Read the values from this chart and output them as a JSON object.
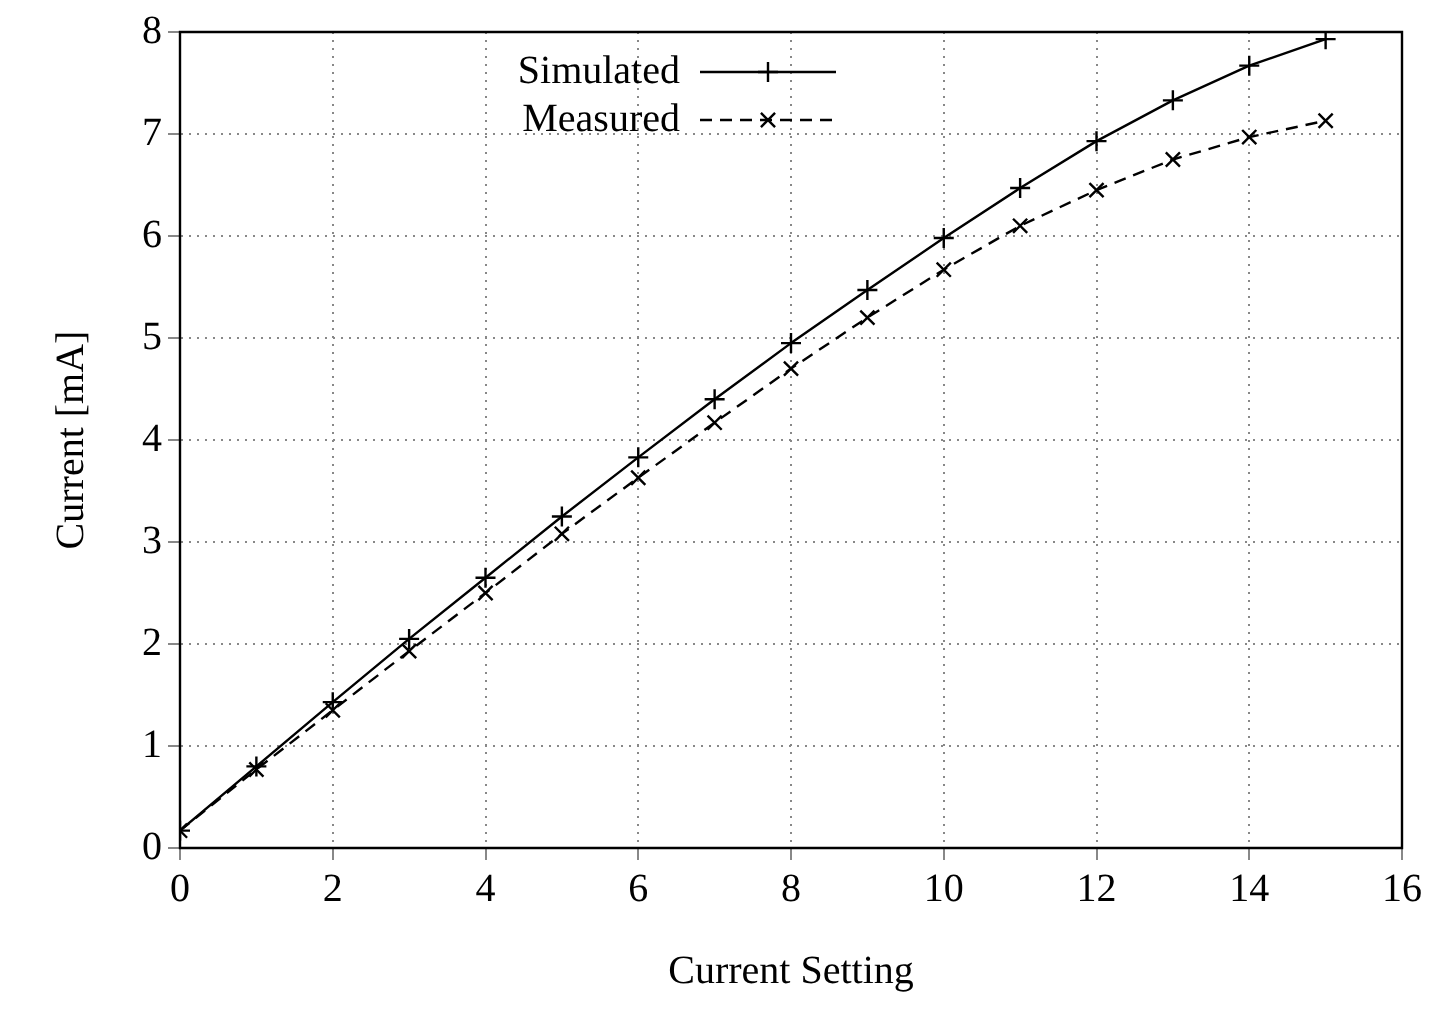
{
  "chart_data": {
    "type": "line",
    "xlabel": "Current Setting",
    "ylabel": "Current [mA]",
    "x": [
      0,
      1,
      2,
      3,
      4,
      5,
      6,
      7,
      8,
      9,
      10,
      11,
      12,
      13,
      14,
      15
    ],
    "series": [
      {
        "name": "Simulated",
        "color": "#000000",
        "marker": "plus",
        "line_style": "solid",
        "values": [
          0.17,
          0.8,
          1.43,
          2.05,
          2.65,
          3.25,
          3.83,
          4.4,
          4.95,
          5.47,
          5.98,
          6.47,
          6.93,
          7.33,
          7.67,
          7.93
        ]
      },
      {
        "name": "Measured",
        "color": "#000000",
        "marker": "cross",
        "line_style": "dashed",
        "values": [
          0.17,
          0.77,
          1.35,
          1.93,
          2.5,
          3.08,
          3.63,
          4.17,
          4.7,
          5.2,
          5.67,
          6.1,
          6.45,
          6.75,
          6.97,
          7.13
        ]
      }
    ],
    "xlim": [
      0,
      16
    ],
    "xticks": [
      0,
      2,
      4,
      6,
      8,
      10,
      12,
      14,
      16
    ],
    "ylim": [
      0,
      8
    ],
    "yticks": [
      0,
      1,
      2,
      3,
      4,
      5,
      6,
      7,
      8
    ],
    "grid": true,
    "legend": "top left"
  }
}
